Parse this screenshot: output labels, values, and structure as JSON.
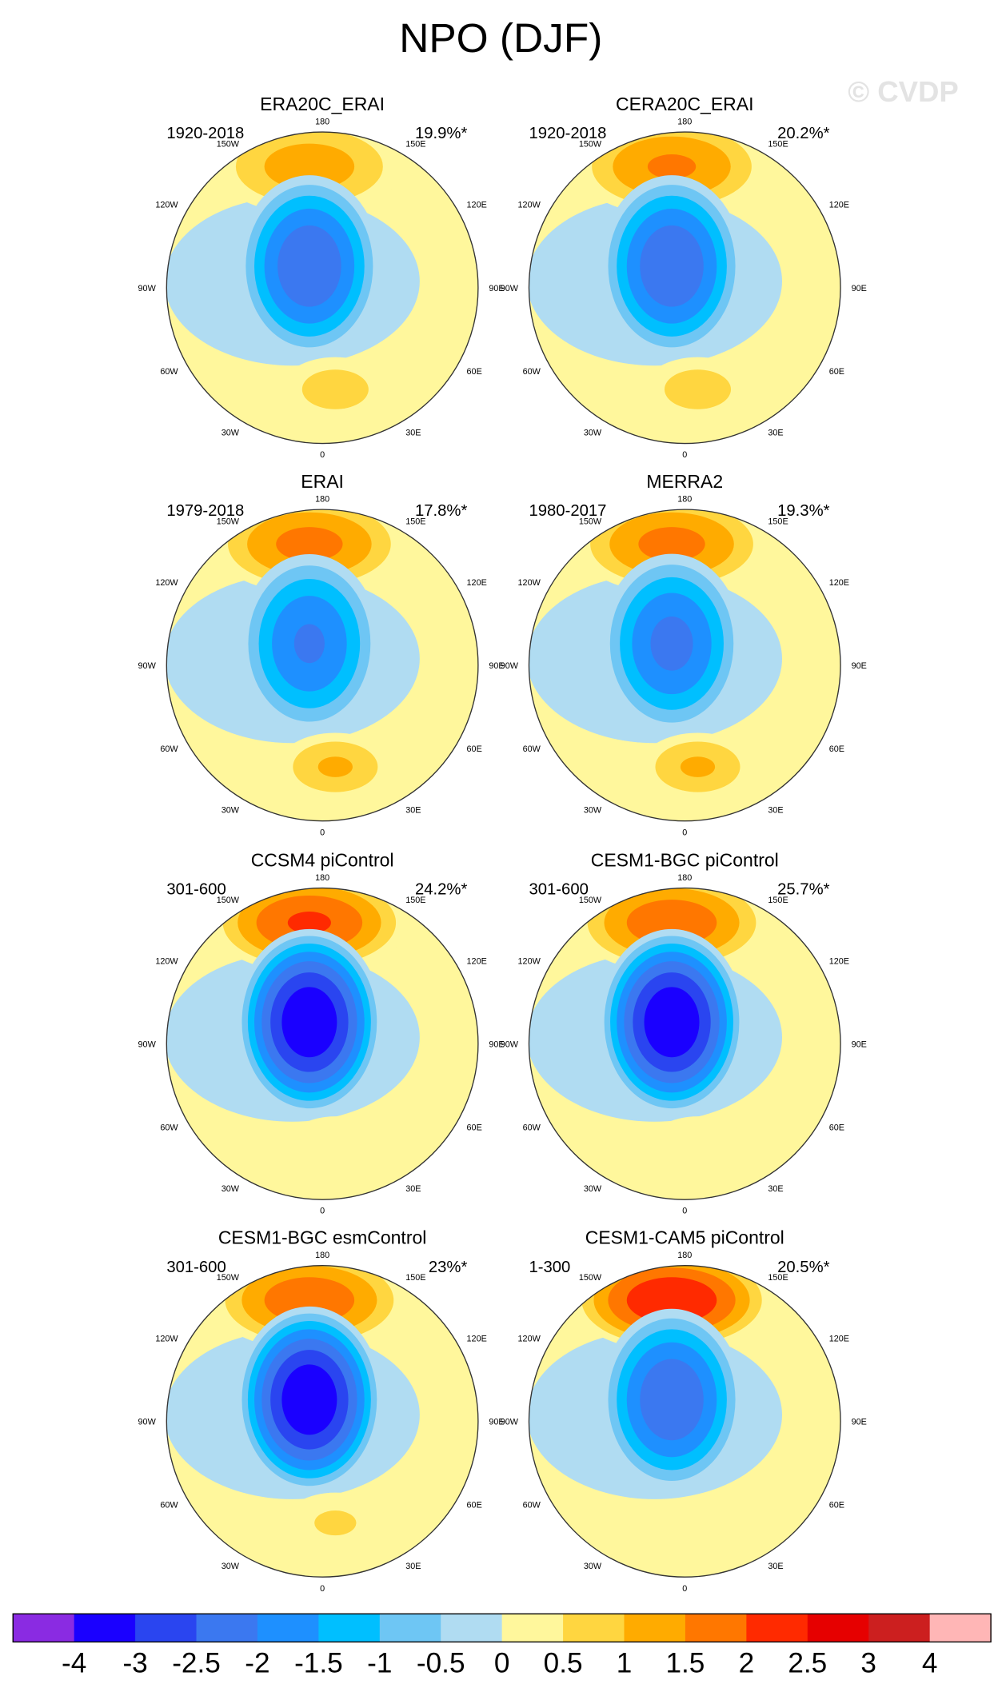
{
  "chart_data": {
    "type": "heatmap",
    "title": "NPO (DJF)",
    "watermark": "© CVDP",
    "projection": "polar-stereographic-north",
    "longitude_labels": [
      "180",
      "150E",
      "120E",
      "90E",
      "60E",
      "30E",
      "0",
      "30W",
      "60W",
      "90W",
      "120W",
      "150W"
    ],
    "colorbar": {
      "labels": [
        "-4",
        "-3",
        "-2.5",
        "-2",
        "-1.5",
        "-1",
        "-0.5",
        "0",
        "0.5",
        "1",
        "1.5",
        "2",
        "2.5",
        "3",
        "4"
      ],
      "colors": [
        "#8a2be2",
        "#1a00ff",
        "#2a45f0",
        "#3b78f0",
        "#1e90ff",
        "#00bfff",
        "#6ec6f4",
        "#b0dcf2",
        "#fff79c",
        "#ffd640",
        "#ffab00",
        "#ff7700",
        "#ff2a00",
        "#e60000",
        "#cc1f1f",
        "#ffb6b6"
      ]
    },
    "panels": [
      {
        "name": "ERA20C_ERAI",
        "period": "1920-2018",
        "variance": "19.9%*",
        "pos_max": 1.8,
        "neg_min": -3.0,
        "atl": 1.3
      },
      {
        "name": "CERA20C_ERAI",
        "period": "1920-2018",
        "variance": "20.2%*",
        "pos_max": 2.1,
        "neg_min": -3.0,
        "atl": 1.3
      },
      {
        "name": "ERAI",
        "period": "1979-2018",
        "variance": "17.8%*",
        "pos_max": 2.2,
        "neg_min": -2.6,
        "atl": 1.6
      },
      {
        "name": "MERRA2",
        "period": "1980-2017",
        "variance": "19.3%*",
        "pos_max": 2.2,
        "neg_min": -2.7,
        "atl": 1.6
      },
      {
        "name": "CCSM4 piControl",
        "period": "301-600",
        "variance": "24.2%*",
        "pos_max": 2.6,
        "neg_min": -4.0,
        "atl": 1.0
      },
      {
        "name": "CESM1-BGC piControl",
        "period": "301-600",
        "variance": "25.7%*",
        "pos_max": 2.4,
        "neg_min": -4.0,
        "atl": 1.0
      },
      {
        "name": "CESM1-BGC esmControl",
        "period": "301-600",
        "variance": "23%*",
        "pos_max": 2.4,
        "neg_min": -4.0,
        "atl": 1.1
      },
      {
        "name": "CESM1-CAM5 piControl",
        "period": "1-300",
        "variance": "20.5%*",
        "pos_max": 3.0,
        "neg_min": -3.0,
        "atl": 0.6
      }
    ]
  }
}
